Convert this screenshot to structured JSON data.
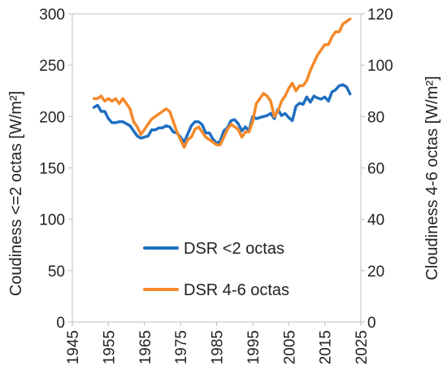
{
  "chart_data": {
    "type": "line",
    "ylabel": "Coudiness <=2 octas [W/m²]",
    "y2label": "Cloudiness 4-6 octas [W/m²]",
    "xlim": [
      1945,
      2025
    ],
    "ylim": [
      0,
      300
    ],
    "y2lim": [
      0,
      120
    ],
    "x_ticks": [
      1945,
      1955,
      1965,
      1975,
      1985,
      1995,
      2005,
      2015,
      2025
    ],
    "y_ticks": [
      0,
      50,
      100,
      150,
      200,
      250,
      300
    ],
    "y2_ticks": [
      0,
      20,
      40,
      60,
      80,
      100,
      120
    ],
    "grid": false,
    "legend_position": "lower-center",
    "series": [
      {
        "name": "DSR <2 octas",
        "axis": "left",
        "color": "#1f6fc1",
        "x": [
          1951,
          1952,
          1953,
          1954,
          1955,
          1956,
          1957,
          1958,
          1959,
          1960,
          1961,
          1962,
          1963,
          1964,
          1965,
          1966,
          1967,
          1968,
          1969,
          1970,
          1971,
          1972,
          1973,
          1974,
          1975,
          1976,
          1977,
          1978,
          1979,
          1980,
          1981,
          1982,
          1983,
          1984,
          1985,
          1986,
          1987,
          1988,
          1989,
          1990,
          1991,
          1992,
          1993,
          1994,
          1995,
          1996,
          1997,
          1998,
          1999,
          2000,
          2001,
          2002,
          2003,
          2004,
          2005,
          2006,
          2007,
          2008,
          2009,
          2010,
          2011,
          2012,
          2013,
          2014,
          2015,
          2016,
          2017,
          2018,
          2019,
          2020,
          2021,
          2022
        ],
        "values": [
          209,
          211,
          205,
          205,
          198,
          194,
          194,
          195,
          195,
          193,
          191,
          186,
          181,
          179,
          180,
          181,
          187,
          187,
          189,
          189,
          191,
          190,
          185,
          184,
          180,
          175,
          183,
          191,
          195,
          195,
          192,
          184,
          184,
          178,
          174,
          176,
          186,
          189,
          196,
          197,
          193,
          186,
          190,
          186,
          200,
          198,
          199,
          200,
          201,
          203,
          198,
          207,
          201,
          203,
          199,
          196,
          210,
          213,
          212,
          219,
          214,
          220,
          218,
          217,
          219,
          215,
          224,
          226,
          230,
          231,
          229,
          222
        ]
      },
      {
        "name": "DSR 4-6 octas",
        "axis": "right",
        "color": "#f4892a",
        "x": [
          1951,
          1952,
          1953,
          1954,
          1955,
          1956,
          1957,
          1958,
          1959,
          1960,
          1961,
          1962,
          1963,
          1964,
          1965,
          1966,
          1967,
          1968,
          1969,
          1970,
          1971,
          1972,
          1973,
          1974,
          1975,
          1976,
          1977,
          1978,
          1979,
          1980,
          1981,
          1982,
          1983,
          1984,
          1985,
          1986,
          1987,
          1988,
          1989,
          1990,
          1991,
          1992,
          1993,
          1994,
          1995,
          1996,
          1997,
          1998,
          1999,
          2000,
          2001,
          2002,
          2003,
          2004,
          2005,
          2006,
          2007,
          2008,
          2009,
          2010,
          2011,
          2012,
          2013,
          2014,
          2015,
          2016,
          2017,
          2018,
          2019,
          2020,
          2021,
          2022
        ],
        "values": [
          87,
          87,
          88,
          86,
          87,
          86,
          87,
          85,
          87,
          85,
          83,
          78,
          76,
          73,
          75,
          77,
          79,
          80,
          81,
          82,
          83,
          82,
          78,
          74,
          71,
          68,
          71,
          72,
          75,
          76,
          74,
          72,
          71,
          70,
          69,
          69,
          72,
          75,
          77,
          76,
          75,
          72,
          74,
          74,
          78,
          85,
          87,
          89,
          88,
          86,
          80,
          82,
          86,
          88,
          91,
          93,
          90,
          92,
          92,
          94,
          98,
          101,
          104,
          106,
          108,
          108,
          111,
          113,
          113,
          116,
          117,
          118
        ]
      }
    ]
  }
}
